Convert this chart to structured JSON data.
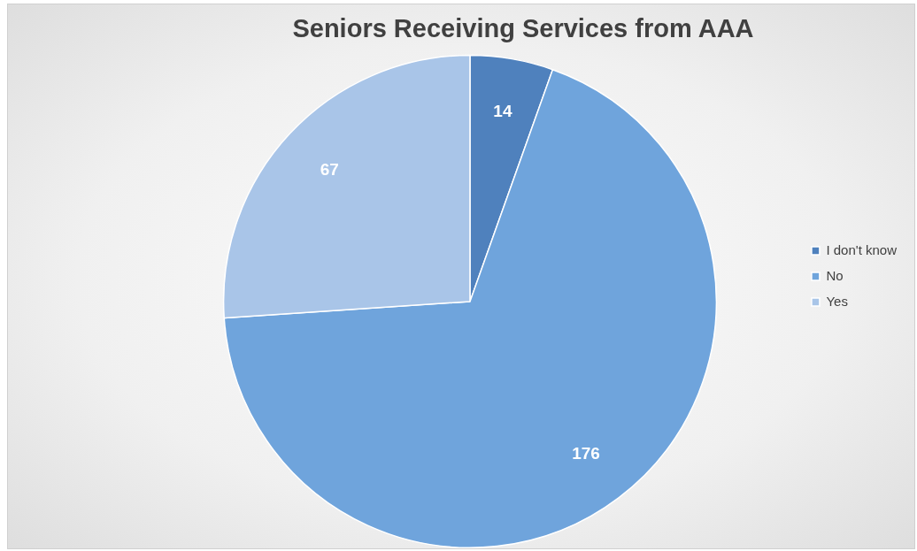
{
  "chart_data": {
    "type": "pie",
    "title": "Seniors Receiving Services from AAA",
    "categories": [
      "I don't know",
      "No",
      "Yes"
    ],
    "values": [
      14,
      176,
      67
    ],
    "colors": [
      "#4f81bd",
      "#6fa4dc",
      "#a9c5e8"
    ],
    "data_labels": true,
    "legend": "right"
  }
}
